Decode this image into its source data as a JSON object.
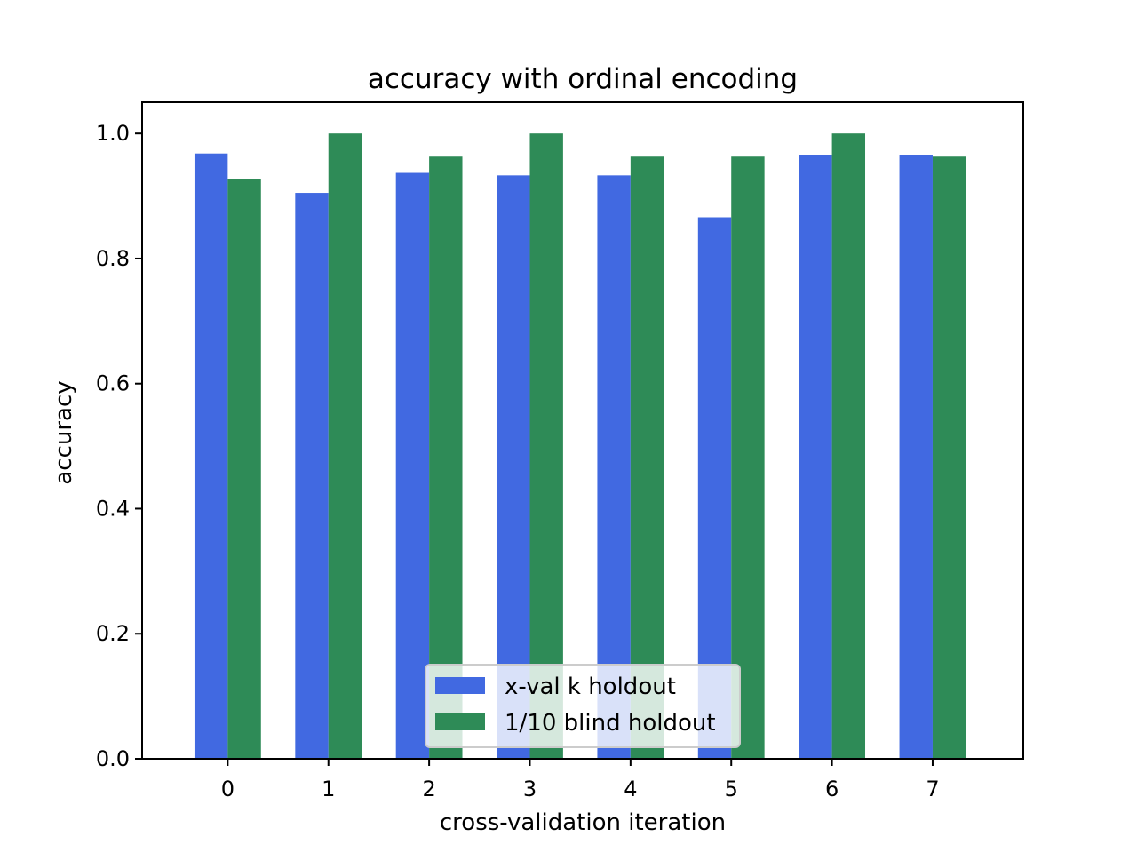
{
  "chart_data": {
    "type": "bar",
    "title": "accuracy with ordinal encoding",
    "xlabel": "cross-validation iteration",
    "ylabel": "accuracy",
    "categories": [
      "0",
      "1",
      "2",
      "3",
      "4",
      "5",
      "6",
      "7"
    ],
    "series": [
      {
        "name": "x-val k holdout",
        "color": "#4169e1",
        "values": [
          0.968,
          0.905,
          0.937,
          0.933,
          0.933,
          0.866,
          0.965,
          0.965
        ]
      },
      {
        "name": "1/10 blind holdout",
        "color": "#2e8b57",
        "values": [
          0.927,
          1.0,
          0.963,
          1.0,
          0.963,
          0.963,
          1.0,
          0.963
        ]
      }
    ],
    "ylim": [
      0,
      1.05
    ],
    "yticks": [
      "0.0",
      "0.2",
      "0.4",
      "0.6",
      "0.8",
      "1.0"
    ],
    "grid": false,
    "legend_position": "lower center"
  }
}
